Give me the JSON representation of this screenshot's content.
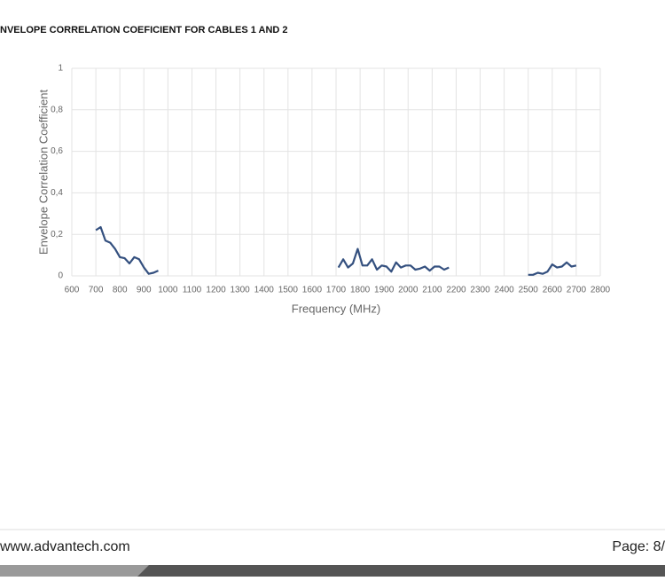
{
  "header": {
    "title": "NVELOPE CORRELATION COEFICIENT FOR CABLES 1 AND 2"
  },
  "chart_data": {
    "type": "line",
    "y_label": "Envelope Correlation Coefficient",
    "x_label": "Frequency (MHz)",
    "x": [
      700,
      720,
      740,
      760,
      780,
      800,
      820,
      840,
      860,
      880,
      900,
      920,
      940,
      960,
      null,
      1710,
      1730,
      1750,
      1770,
      1790,
      1810,
      1830,
      1850,
      1870,
      1890,
      1910,
      1930,
      1950,
      1970,
      1990,
      2010,
      2030,
      2050,
      2070,
      2090,
      2110,
      2130,
      2150,
      2170,
      null,
      2500,
      2520,
      2540,
      2560,
      2580,
      2600,
      2620,
      2640,
      2660,
      2680,
      2700
    ],
    "series": [
      {
        "color": "#34507f",
        "values": [
          0.22,
          0.235,
          0.17,
          0.16,
          0.13,
          0.09,
          0.085,
          0.06,
          0.09,
          0.08,
          0.04,
          0.01,
          0.015,
          0.025,
          null,
          0.04,
          0.08,
          0.04,
          0.06,
          0.13,
          0.05,
          0.05,
          0.08,
          0.03,
          0.05,
          0.045,
          0.02,
          0.065,
          0.04,
          0.05,
          0.05,
          0.03,
          0.035,
          0.045,
          0.025,
          0.045,
          0.045,
          0.03,
          0.04,
          null,
          0.005,
          0.005,
          0.015,
          0.01,
          0.02,
          0.055,
          0.04,
          0.045,
          0.065,
          0.045,
          0.05
        ]
      }
    ],
    "xlim": [
      600,
      2800
    ],
    "ylim": [
      0,
      1
    ],
    "xticks": [
      600,
      700,
      800,
      900,
      1000,
      1100,
      1200,
      1300,
      1400,
      1500,
      1600,
      1700,
      1800,
      1900,
      2000,
      2100,
      2200,
      2300,
      2400,
      2500,
      2600,
      2700,
      2800
    ],
    "yticks": [
      0,
      {
        "value": 0.2,
        "label": "0,2"
      },
      {
        "value": 0.4,
        "label": "0,4"
      },
      {
        "value": 0.6,
        "label": "0,6"
      },
      {
        "value": 0.8,
        "label": "0,8"
      },
      1
    ],
    "grid": true
  },
  "footer": {
    "url": "www.advantech.com",
    "page": "Page: 8/"
  }
}
